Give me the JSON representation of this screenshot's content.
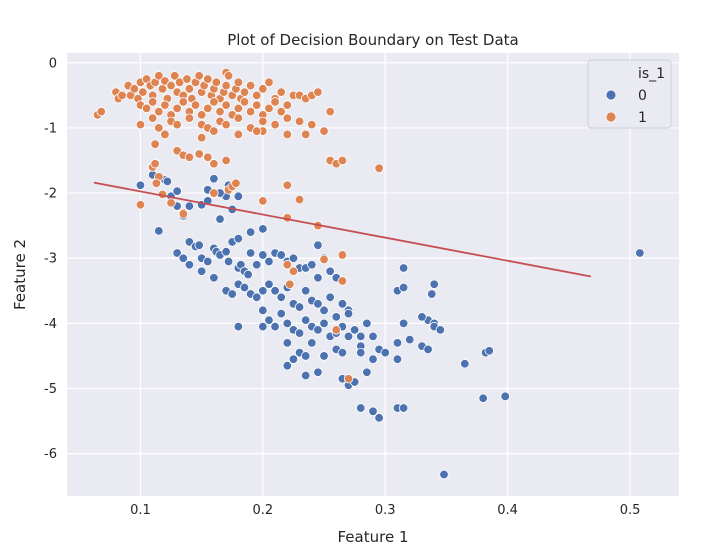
{
  "chart_data": {
    "type": "scatter",
    "title": "Plot of Decision Boundary on Test Data",
    "xlabel": "Feature 1",
    "ylabel": "Feature 2",
    "xlim": [
      0.04,
      0.54
    ],
    "ylim": [
      -6.65,
      0.15
    ],
    "xticks": [
      0.1,
      0.2,
      0.3,
      0.4,
      0.5
    ],
    "yticks": [
      0,
      -1,
      -2,
      -3,
      -4,
      -5,
      -6
    ],
    "grid": true,
    "legend": {
      "title": "is_1",
      "placement": "top-right",
      "entries": [
        "0",
        "1"
      ]
    },
    "colors": {
      "0": "#4c72b0",
      "1": "#dd8452",
      "boundary": "#c44e52",
      "background": "#eaeaf2",
      "grid": "#ffffff"
    },
    "boundary_line": {
      "x": [
        0.062,
        0.468
      ],
      "y": [
        -1.84,
        -3.28
      ]
    },
    "series": [
      {
        "name": "0",
        "points": [
          [
            0.1,
            -1.88
          ],
          [
            0.12,
            -1.8
          ],
          [
            0.122,
            -1.82
          ],
          [
            0.11,
            -1.72
          ],
          [
            0.13,
            -2.2
          ],
          [
            0.115,
            -2.58
          ],
          [
            0.125,
            -2.05
          ],
          [
            0.13,
            -1.97
          ],
          [
            0.14,
            -2.2
          ],
          [
            0.135,
            -2.35
          ],
          [
            0.15,
            -2.18
          ],
          [
            0.155,
            -2.12
          ],
          [
            0.16,
            -1.78
          ],
          [
            0.155,
            -1.95
          ],
          [
            0.17,
            -2.05
          ],
          [
            0.165,
            -2.0
          ],
          [
            0.175,
            -2.25
          ],
          [
            0.18,
            -2.05
          ],
          [
            0.172,
            -1.88
          ],
          [
            0.19,
            -2.6
          ],
          [
            0.2,
            -2.55
          ],
          [
            0.165,
            -2.4
          ],
          [
            0.13,
            -2.92
          ],
          [
            0.14,
            -2.75
          ],
          [
            0.145,
            -2.82
          ],
          [
            0.148,
            -2.8
          ],
          [
            0.15,
            -3.0
          ],
          [
            0.155,
            -3.05
          ],
          [
            0.16,
            -2.85
          ],
          [
            0.162,
            -2.9
          ],
          [
            0.165,
            -2.95
          ],
          [
            0.17,
            -2.9
          ],
          [
            0.172,
            -3.05
          ],
          [
            0.175,
            -2.75
          ],
          [
            0.18,
            -2.7
          ],
          [
            0.18,
            -3.15
          ],
          [
            0.182,
            -3.1
          ],
          [
            0.185,
            -3.2
          ],
          [
            0.188,
            -3.25
          ],
          [
            0.19,
            -2.92
          ],
          [
            0.195,
            -3.1
          ],
          [
            0.2,
            -2.95
          ],
          [
            0.205,
            -3.05
          ],
          [
            0.21,
            -2.92
          ],
          [
            0.215,
            -2.95
          ],
          [
            0.22,
            -3.05
          ],
          [
            0.225,
            -3.0
          ],
          [
            0.23,
            -3.15
          ],
          [
            0.235,
            -3.15
          ],
          [
            0.24,
            -3.1
          ],
          [
            0.245,
            -2.8
          ],
          [
            0.245,
            -3.3
          ],
          [
            0.25,
            -3.0
          ],
          [
            0.255,
            -3.2
          ],
          [
            0.26,
            -3.3
          ],
          [
            0.135,
            -3.0
          ],
          [
            0.14,
            -3.1
          ],
          [
            0.15,
            -3.2
          ],
          [
            0.16,
            -3.3
          ],
          [
            0.17,
            -3.5
          ],
          [
            0.175,
            -3.55
          ],
          [
            0.18,
            -3.4
          ],
          [
            0.185,
            -3.45
          ],
          [
            0.19,
            -3.55
          ],
          [
            0.195,
            -3.6
          ],
          [
            0.2,
            -3.5
          ],
          [
            0.205,
            -3.4
          ],
          [
            0.21,
            -3.5
          ],
          [
            0.215,
            -3.6
          ],
          [
            0.22,
            -3.45
          ],
          [
            0.225,
            -3.7
          ],
          [
            0.23,
            -3.75
          ],
          [
            0.235,
            -3.5
          ],
          [
            0.24,
            -3.65
          ],
          [
            0.245,
            -3.7
          ],
          [
            0.25,
            -3.8
          ],
          [
            0.255,
            -3.6
          ],
          [
            0.26,
            -3.9
          ],
          [
            0.265,
            -3.7
          ],
          [
            0.27,
            -3.8
          ],
          [
            0.2,
            -3.8
          ],
          [
            0.205,
            -3.95
          ],
          [
            0.21,
            -4.05
          ],
          [
            0.215,
            -3.85
          ],
          [
            0.22,
            -4.0
          ],
          [
            0.225,
            -4.1
          ],
          [
            0.23,
            -4.15
          ],
          [
            0.235,
            -3.95
          ],
          [
            0.24,
            -4.05
          ],
          [
            0.245,
            -4.1
          ],
          [
            0.25,
            -4.0
          ],
          [
            0.255,
            -4.2
          ],
          [
            0.26,
            -4.15
          ],
          [
            0.265,
            -4.05
          ],
          [
            0.27,
            -3.85
          ],
          [
            0.275,
            -4.1
          ],
          [
            0.28,
            -4.2
          ],
          [
            0.285,
            -4.0
          ],
          [
            0.18,
            -4.05
          ],
          [
            0.2,
            -4.05
          ],
          [
            0.22,
            -4.3
          ],
          [
            0.23,
            -4.45
          ],
          [
            0.235,
            -4.5
          ],
          [
            0.24,
            -4.3
          ],
          [
            0.25,
            -4.5
          ],
          [
            0.26,
            -4.4
          ],
          [
            0.265,
            -4.45
          ],
          [
            0.27,
            -4.2
          ],
          [
            0.28,
            -4.35
          ],
          [
            0.29,
            -4.2
          ],
          [
            0.295,
            -4.4
          ],
          [
            0.3,
            -4.45
          ],
          [
            0.31,
            -4.3
          ],
          [
            0.32,
            -4.25
          ],
          [
            0.33,
            -4.35
          ],
          [
            0.335,
            -3.95
          ],
          [
            0.34,
            -4.0
          ],
          [
            0.335,
            -4.4
          ],
          [
            0.34,
            -4.05
          ],
          [
            0.345,
            -4.1
          ],
          [
            0.31,
            -3.5
          ],
          [
            0.315,
            -3.45
          ],
          [
            0.315,
            -3.15
          ],
          [
            0.34,
            -3.4
          ],
          [
            0.338,
            -3.55
          ],
          [
            0.315,
            -4.0
          ],
          [
            0.31,
            -4.55
          ],
          [
            0.33,
            -3.9
          ],
          [
            0.22,
            -4.65
          ],
          [
            0.225,
            -4.55
          ],
          [
            0.235,
            -4.8
          ],
          [
            0.245,
            -4.75
          ],
          [
            0.265,
            -4.85
          ],
          [
            0.27,
            -4.95
          ],
          [
            0.275,
            -4.9
          ],
          [
            0.285,
            -4.75
          ],
          [
            0.28,
            -4.45
          ],
          [
            0.29,
            -4.55
          ],
          [
            0.28,
            -5.3
          ],
          [
            0.29,
            -5.35
          ],
          [
            0.295,
            -5.45
          ],
          [
            0.31,
            -5.3
          ],
          [
            0.315,
            -5.3
          ],
          [
            0.348,
            -6.32
          ],
          [
            0.365,
            -4.62
          ],
          [
            0.38,
            -5.15
          ],
          [
            0.382,
            -4.45
          ],
          [
            0.385,
            -4.42
          ],
          [
            0.398,
            -5.12
          ],
          [
            0.508,
            -2.92
          ]
        ]
      },
      {
        "name": "1",
        "points": [
          [
            0.065,
            -0.8
          ],
          [
            0.068,
            -0.75
          ],
          [
            0.08,
            -0.45
          ],
          [
            0.082,
            -0.55
          ],
          [
            0.085,
            -0.5
          ],
          [
            0.09,
            -0.35
          ],
          [
            0.092,
            -0.5
          ],
          [
            0.095,
            -0.4
          ],
          [
            0.098,
            -0.55
          ],
          [
            0.1,
            -0.3
          ],
          [
            0.102,
            -0.45
          ],
          [
            0.105,
            -0.25
          ],
          [
            0.108,
            -0.35
          ],
          [
            0.11,
            -0.5
          ],
          [
            0.112,
            -0.3
          ],
          [
            0.115,
            -0.2
          ],
          [
            0.118,
            -0.4
          ],
          [
            0.12,
            -0.28
          ],
          [
            0.122,
            -0.55
          ],
          [
            0.125,
            -0.35
          ],
          [
            0.128,
            -0.2
          ],
          [
            0.13,
            -0.45
          ],
          [
            0.132,
            -0.3
          ],
          [
            0.135,
            -0.5
          ],
          [
            0.138,
            -0.25
          ],
          [
            0.14,
            -0.4
          ],
          [
            0.142,
            -0.55
          ],
          [
            0.145,
            -0.3
          ],
          [
            0.148,
            -0.2
          ],
          [
            0.15,
            -0.45
          ],
          [
            0.152,
            -0.35
          ],
          [
            0.155,
            -0.25
          ],
          [
            0.158,
            -0.5
          ],
          [
            0.16,
            -0.4
          ],
          [
            0.162,
            -0.3
          ],
          [
            0.165,
            -0.55
          ],
          [
            0.168,
            -0.45
          ],
          [
            0.17,
            -0.35
          ],
          [
            0.172,
            -0.2
          ],
          [
            0.175,
            -0.5
          ],
          [
            0.178,
            -0.4
          ],
          [
            0.18,
            -0.3
          ],
          [
            0.182,
            -0.55
          ],
          [
            0.185,
            -0.45
          ],
          [
            0.19,
            -0.35
          ],
          [
            0.195,
            -0.5
          ],
          [
            0.2,
            -0.4
          ],
          [
            0.205,
            -0.3
          ],
          [
            0.21,
            -0.55
          ],
          [
            0.215,
            -0.45
          ],
          [
            0.1,
            -0.65
          ],
          [
            0.105,
            -0.7
          ],
          [
            0.11,
            -0.6
          ],
          [
            0.115,
            -0.75
          ],
          [
            0.12,
            -0.65
          ],
          [
            0.125,
            -0.8
          ],
          [
            0.13,
            -0.7
          ],
          [
            0.135,
            -0.6
          ],
          [
            0.14,
            -0.75
          ],
          [
            0.145,
            -0.65
          ],
          [
            0.15,
            -0.8
          ],
          [
            0.155,
            -0.7
          ],
          [
            0.16,
            -0.6
          ],
          [
            0.165,
            -0.75
          ],
          [
            0.17,
            -0.65
          ],
          [
            0.175,
            -0.8
          ],
          [
            0.18,
            -0.7
          ],
          [
            0.185,
            -0.6
          ],
          [
            0.19,
            -0.75
          ],
          [
            0.195,
            -0.65
          ],
          [
            0.2,
            -0.8
          ],
          [
            0.205,
            -0.7
          ],
          [
            0.21,
            -0.6
          ],
          [
            0.215,
            -0.75
          ],
          [
            0.22,
            -0.65
          ],
          [
            0.225,
            -0.5
          ],
          [
            0.23,
            -0.5
          ],
          [
            0.235,
            -0.55
          ],
          [
            0.24,
            -0.5
          ],
          [
            0.245,
            -0.45
          ],
          [
            0.1,
            -0.95
          ],
          [
            0.11,
            -0.85
          ],
          [
            0.115,
            -1.0
          ],
          [
            0.125,
            -0.9
          ],
          [
            0.13,
            -0.95
          ],
          [
            0.14,
            -0.85
          ],
          [
            0.15,
            -0.95
          ],
          [
            0.155,
            -1.0
          ],
          [
            0.165,
            -0.9
          ],
          [
            0.17,
            -0.95
          ],
          [
            0.18,
            -0.85
          ],
          [
            0.19,
            -1.0
          ],
          [
            0.2,
            -0.9
          ],
          [
            0.21,
            -0.95
          ],
          [
            0.22,
            -0.85
          ],
          [
            0.23,
            -0.9
          ],
          [
            0.24,
            -0.95
          ],
          [
            0.12,
            -1.1
          ],
          [
            0.15,
            -1.15
          ],
          [
            0.18,
            -1.1
          ],
          [
            0.2,
            -1.05
          ],
          [
            0.22,
            -1.1
          ],
          [
            0.16,
            -1.05
          ],
          [
            0.17,
            -0.15
          ],
          [
            0.172,
            -0.2
          ],
          [
            0.112,
            -1.25
          ],
          [
            0.13,
            -1.35
          ],
          [
            0.135,
            -1.42
          ],
          [
            0.14,
            -1.45
          ],
          [
            0.148,
            -1.4
          ],
          [
            0.155,
            -1.45
          ],
          [
            0.16,
            -1.55
          ],
          [
            0.17,
            -1.5
          ],
          [
            0.172,
            -1.95
          ],
          [
            0.175,
            -1.9
          ],
          [
            0.178,
            -1.85
          ],
          [
            0.11,
            -1.6
          ],
          [
            0.112,
            -1.55
          ],
          [
            0.115,
            -1.75
          ],
          [
            0.113,
            -1.85
          ],
          [
            0.1,
            -2.18
          ],
          [
            0.118,
            -2.02
          ],
          [
            0.125,
            -2.15
          ],
          [
            0.135,
            -2.3
          ],
          [
            0.135,
            -2.32
          ],
          [
            0.16,
            -2.0
          ],
          [
            0.2,
            -2.12
          ],
          [
            0.22,
            -1.88
          ],
          [
            0.23,
            -2.1
          ],
          [
            0.22,
            -2.38
          ],
          [
            0.245,
            -2.5
          ],
          [
            0.195,
            -1.05
          ],
          [
            0.235,
            -1.1
          ],
          [
            0.25,
            -1.05
          ],
          [
            0.255,
            -1.5
          ],
          [
            0.26,
            -1.55
          ],
          [
            0.265,
            -1.5
          ],
          [
            0.295,
            -1.62
          ],
          [
            0.255,
            -0.75
          ],
          [
            0.265,
            -2.95
          ],
          [
            0.265,
            -3.35
          ],
          [
            0.22,
            -3.1
          ],
          [
            0.222,
            -3.4
          ],
          [
            0.225,
            -3.2
          ],
          [
            0.25,
            -3.02
          ],
          [
            0.26,
            -4.1
          ],
          [
            0.27,
            -4.85
          ]
        ]
      }
    ]
  }
}
